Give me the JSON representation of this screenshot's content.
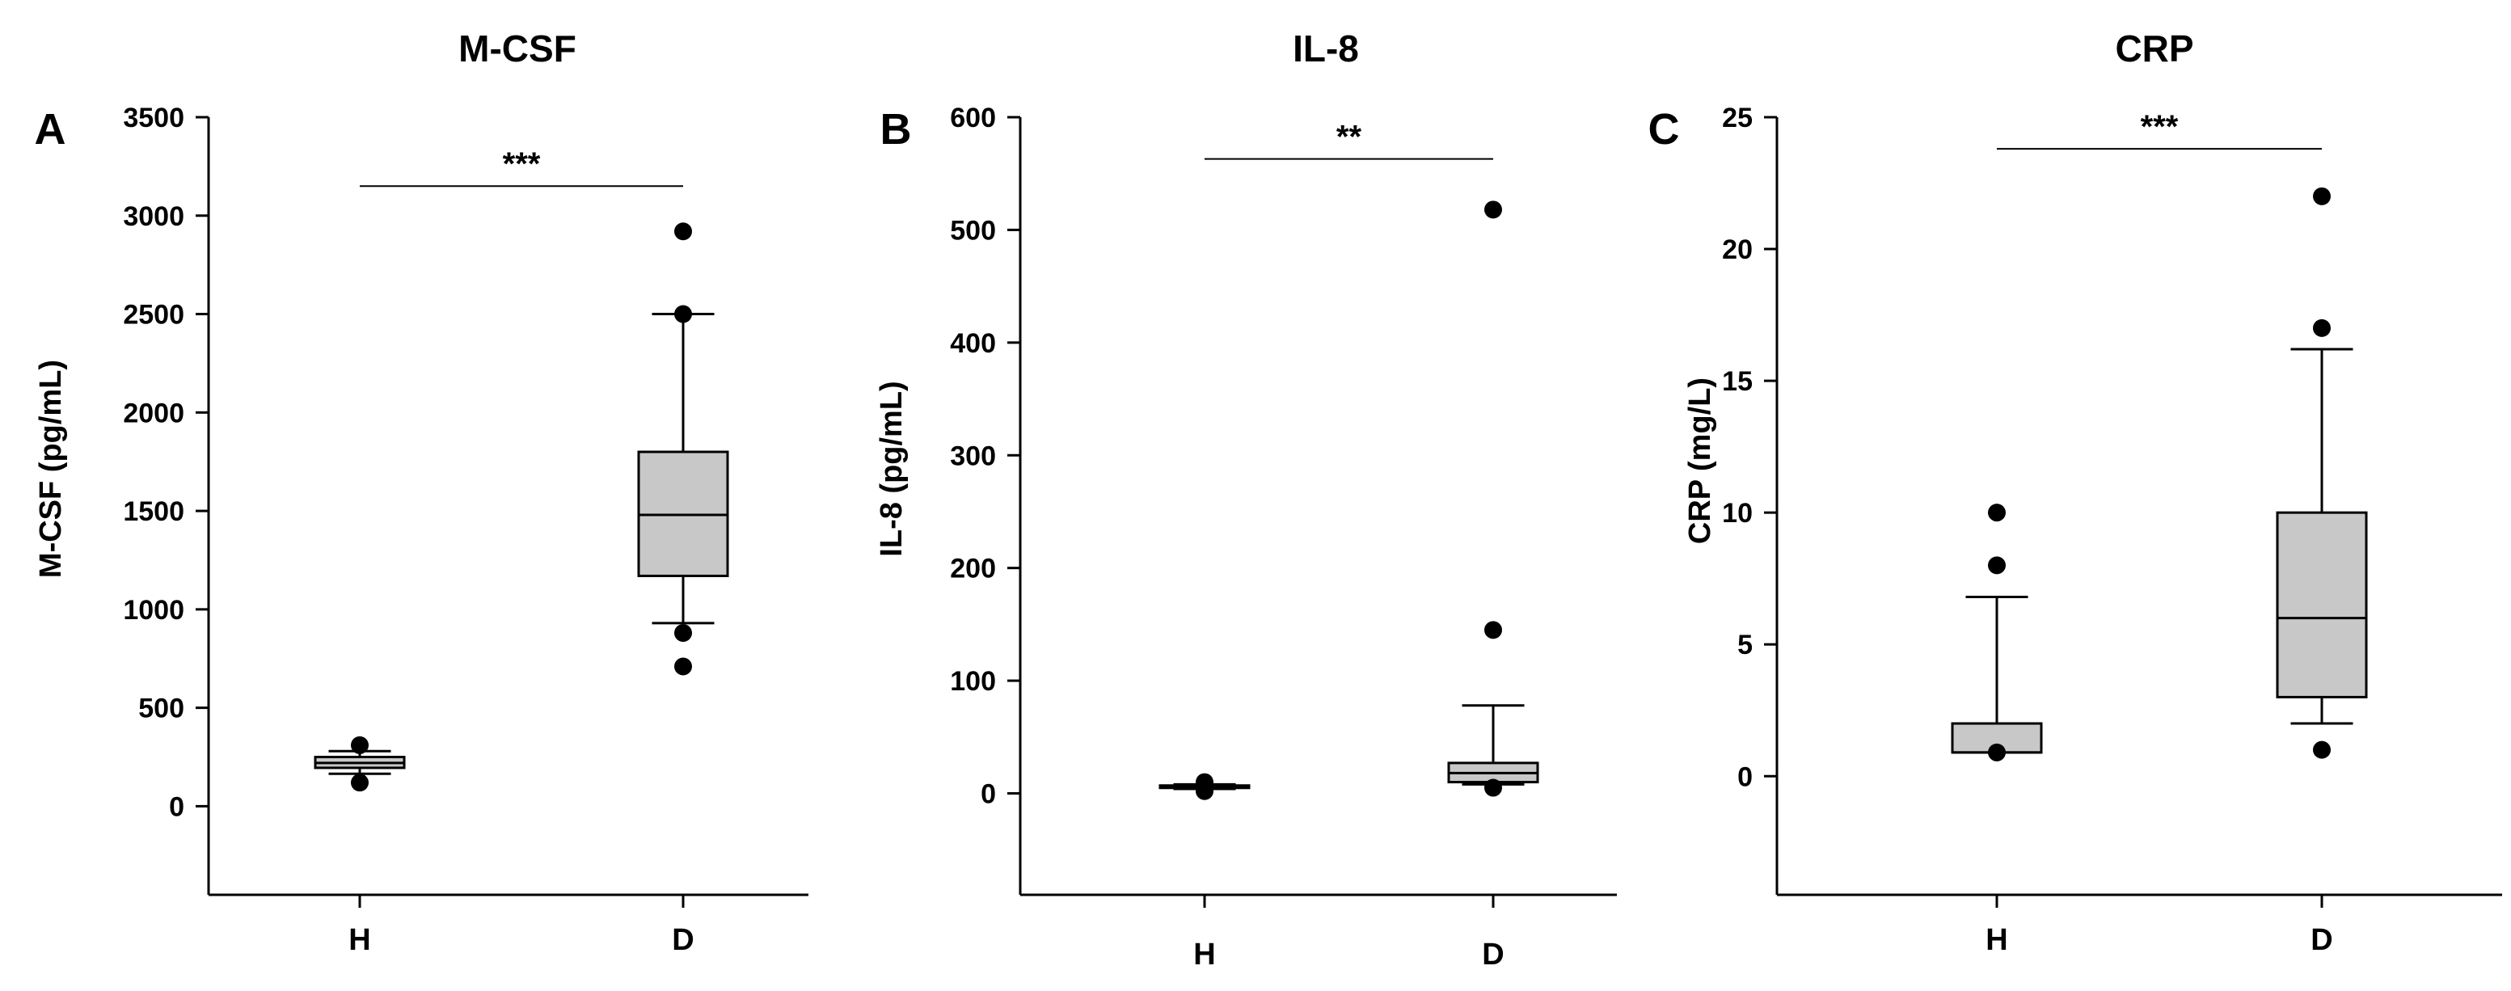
{
  "chart_data": [
    {
      "type": "box",
      "panel": "A",
      "title": "M-CSF",
      "ylabel": "M-CSF (pg/mL)",
      "xlabel": "",
      "ylim": [
        -450,
        3500
      ],
      "yticks": [
        0,
        500,
        1000,
        1500,
        2000,
        2500,
        3000,
        3500
      ],
      "categories": [
        "H",
        "D"
      ],
      "boxes": [
        {
          "category": "H",
          "whisker_low": 165,
          "q1": 195,
          "median": 220,
          "q3": 250,
          "whisker_high": 280,
          "outliers": [
            120,
            310
          ]
        },
        {
          "category": "D",
          "whisker_low": 930,
          "q1": 1170,
          "median": 1480,
          "q3": 1800,
          "whisker_high": 2500,
          "outliers": [
            880,
            710,
            2500,
            2920
          ]
        }
      ],
      "significance": {
        "label": "***",
        "from": "H",
        "to": "D",
        "y": 3150
      }
    },
    {
      "type": "box",
      "panel": "B",
      "title": "IL-8",
      "ylabel": "IL-8 (pg/mL)",
      "xlabel": "",
      "ylim": [
        -90,
        600
      ],
      "yticks": [
        0,
        100,
        200,
        300,
        400,
        500,
        600
      ],
      "categories": [
        "H",
        "D"
      ],
      "boxes": [
        {
          "category": "H",
          "whisker_low": 4,
          "q1": 5,
          "median": 6,
          "q3": 7,
          "whisker_high": 8,
          "outliers": [
            2,
            10
          ]
        },
        {
          "category": "D",
          "whisker_low": 8,
          "q1": 10,
          "median": 18,
          "q3": 27,
          "whisker_high": 78,
          "outliers": [
            5,
            145,
            518
          ]
        }
      ],
      "significance": {
        "label": "**",
        "from": "H",
        "to": "D",
        "y": 563
      }
    },
    {
      "type": "box",
      "panel": "C",
      "title": "CRP",
      "ylabel": "CRP (mg/L)",
      "xlabel": "",
      "ylim": [
        -4.5,
        25
      ],
      "yticks": [
        0,
        5,
        10,
        15,
        20,
        25
      ],
      "categories": [
        "H",
        "D"
      ],
      "boxes": [
        {
          "category": "H",
          "whisker_low": 0.9,
          "q1": 0.9,
          "median": 0.9,
          "q3": 2,
          "whisker_high": 6.8,
          "outliers": [
            0.9,
            8,
            10
          ]
        },
        {
          "category": "D",
          "whisker_low": 2,
          "q1": 3,
          "median": 6,
          "q3": 10,
          "whisker_high": 16.2,
          "outliers": [
            1,
            17,
            22
          ]
        }
      ],
      "significance": {
        "label": "***",
        "from": "H",
        "to": "D",
        "y": 23.8
      }
    }
  ]
}
